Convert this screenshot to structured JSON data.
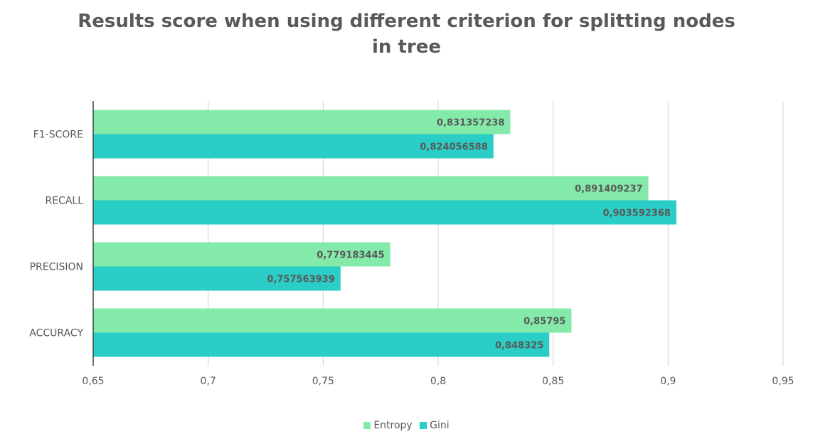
{
  "chart_data": {
    "type": "bar",
    "orientation": "horizontal",
    "title": "Results score when using different criterion for splitting nodes in tree",
    "categories": [
      "F1-SCORE",
      "RECALL",
      "PRECISION",
      "ACCURACY"
    ],
    "series": [
      {
        "name": "Entropy",
        "color": "#84EAAA",
        "values": [
          0.831357238,
          0.891409237,
          0.779183445,
          0.85795
        ],
        "labels": [
          "0,831357238",
          "0,891409237",
          "0,779183445",
          "0,85795"
        ]
      },
      {
        "name": "Gini",
        "color": "#2ACEC6",
        "values": [
          0.824056588,
          0.903592368,
          0.757563939,
          0.848325
        ],
        "labels": [
          "0,824056588",
          "0,903592368",
          "0,757563939",
          "0,848325"
        ]
      }
    ],
    "xlim": [
      0.65,
      0.95
    ],
    "ticks": [
      0.65,
      0.7,
      0.75,
      0.8,
      0.85,
      0.9,
      0.95
    ],
    "tick_labels": [
      "0,65",
      "0,7",
      "0,75",
      "0,8",
      "0,85",
      "0,9",
      "0,95"
    ],
    "grid": true,
    "legend_position": "bottom"
  }
}
